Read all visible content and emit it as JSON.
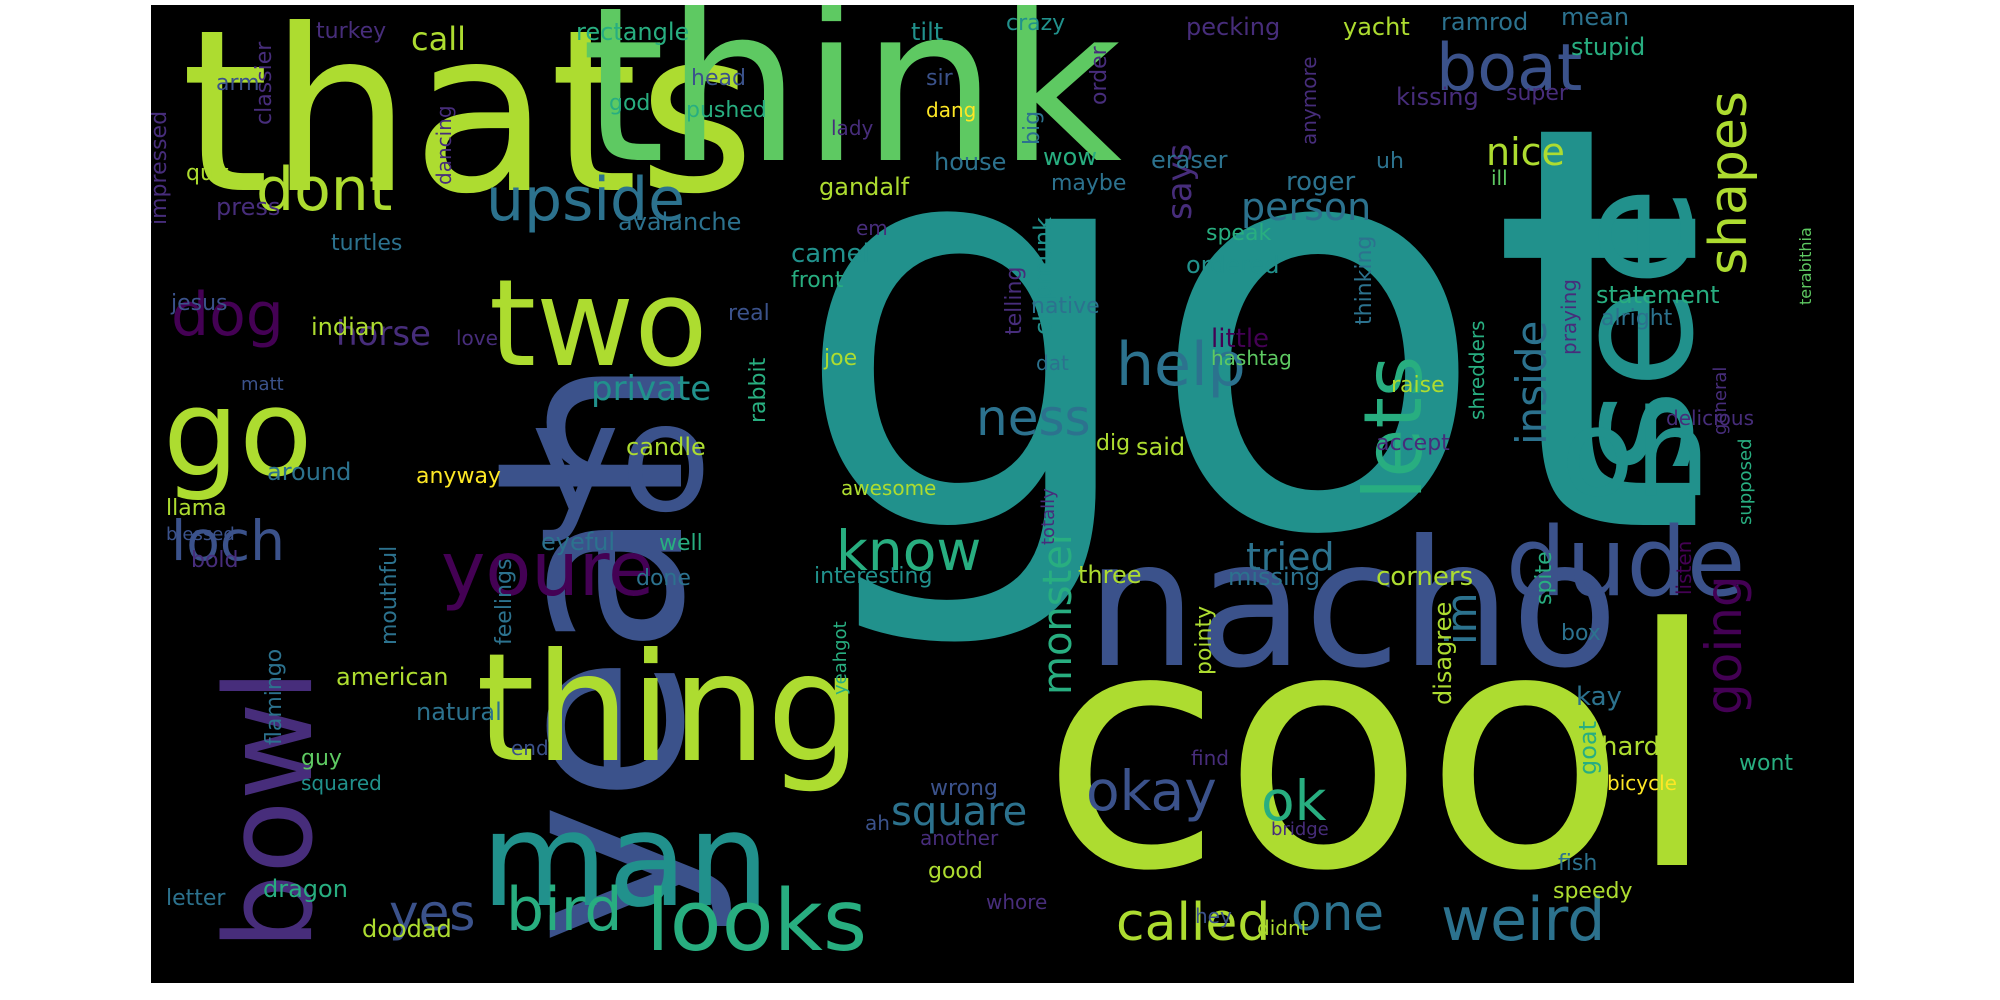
{
  "palette": {
    "purple": "#440154",
    "indigo": "#472d7b",
    "blue": "#3b528b",
    "steel": "#2c728e",
    "teal": "#21918c",
    "green": "#28ae80",
    "lime": "#5ec962",
    "yellowgreen": "#addc30",
    "yellow": "#fde725",
    "background": "#000000"
  },
  "words": [
    {
      "text": "got",
      "color": "teal"
    },
    {
      "text": "cool",
      "color": "yellowgreen"
    },
    {
      "text": "thats",
      "color": "yellowgreen"
    },
    {
      "text": "think",
      "color": "lime"
    },
    {
      "text": "yeah",
      "color": "blue"
    },
    {
      "text": "nacho",
      "color": "blue"
    },
    {
      "text": "see",
      "color": "teal"
    },
    {
      "text": "thing",
      "color": "yellowgreen"
    },
    {
      "text": "man",
      "color": "teal"
    },
    {
      "text": "yo",
      "color": "blue"
    },
    {
      "text": "two",
      "color": "yellowgreen"
    },
    {
      "text": "oh",
      "color": "teal"
    },
    {
      "text": "go",
      "color": "yellowgreen"
    },
    {
      "text": "bowl",
      "color": "indigo"
    },
    {
      "text": "looks",
      "color": "green"
    },
    {
      "text": "dude",
      "color": "blue"
    },
    {
      "text": "youre",
      "color": "purple"
    },
    {
      "text": "lets",
      "color": "green"
    },
    {
      "text": "boat",
      "color": "blue"
    },
    {
      "text": "upside",
      "color": "steel"
    },
    {
      "text": "dont",
      "color": "yellowgreen"
    },
    {
      "text": "weird",
      "color": "steel"
    },
    {
      "text": "bird",
      "color": "green"
    },
    {
      "text": "called",
      "color": "yellowgreen"
    },
    {
      "text": "help",
      "color": "steel"
    },
    {
      "text": "know",
      "color": "green"
    },
    {
      "text": "dog",
      "color": "purple"
    },
    {
      "text": "loch",
      "color": "blue"
    },
    {
      "text": "okay",
      "color": "blue"
    },
    {
      "text": "ok",
      "color": "green"
    },
    {
      "text": "one",
      "color": "steel"
    },
    {
      "text": "yes",
      "color": "blue"
    },
    {
      "text": "ness",
      "color": "steel"
    },
    {
      "text": "shapes",
      "color": "yellowgreen"
    },
    {
      "text": "inside",
      "color": "steel"
    },
    {
      "text": "going",
      "color": "purple"
    },
    {
      "text": "im",
      "color": "steel"
    },
    {
      "text": "nice",
      "color": "yellowgreen"
    },
    {
      "text": "monster",
      "color": "green"
    },
    {
      "text": "square",
      "color": "steel"
    },
    {
      "text": "tried",
      "color": "steel"
    },
    {
      "text": "person",
      "color": "steel"
    },
    {
      "text": "private",
      "color": "teal"
    },
    {
      "text": "horse",
      "color": "indigo"
    },
    {
      "text": "call",
      "color": "yellowgreen"
    },
    {
      "text": "says",
      "color": "indigo"
    },
    {
      "text": "gandalf",
      "color": "yellowgreen"
    },
    {
      "text": "rectangle",
      "color": "green"
    },
    {
      "text": "turkey",
      "color": "indigo"
    },
    {
      "text": "tilt",
      "color": "teal"
    },
    {
      "text": "crazy",
      "color": "teal"
    },
    {
      "text": "pecking",
      "color": "indigo"
    },
    {
      "text": "yacht",
      "color": "yellowgreen"
    },
    {
      "text": "ramrod",
      "color": "steel"
    },
    {
      "text": "mean",
      "color": "steel"
    },
    {
      "text": "stupid",
      "color": "green"
    },
    {
      "text": "super",
      "color": "indigo"
    },
    {
      "text": "kissing",
      "color": "indigo"
    },
    {
      "text": "arm",
      "color": "blue"
    },
    {
      "text": "head",
      "color": "blue"
    },
    {
      "text": "sir",
      "color": "blue"
    },
    {
      "text": "god",
      "color": "green"
    },
    {
      "text": "pushed",
      "color": "green"
    },
    {
      "text": "dang",
      "color": "yellow"
    },
    {
      "text": "big",
      "color": "steel"
    },
    {
      "text": "order",
      "color": "indigo"
    },
    {
      "text": "anymore",
      "color": "indigo"
    },
    {
      "text": "classier",
      "color": "indigo"
    },
    {
      "text": "impressed",
      "color": "indigo"
    },
    {
      "text": "dancing",
      "color": "indigo"
    },
    {
      "text": "lady",
      "color": "indigo"
    },
    {
      "text": "quit",
      "color": "yellowgreen"
    },
    {
      "text": "house",
      "color": "steel"
    },
    {
      "text": "wow",
      "color": "green"
    },
    {
      "text": "maybe",
      "color": "steel"
    },
    {
      "text": "eraser",
      "color": "steel"
    },
    {
      "text": "roger",
      "color": "steel"
    },
    {
      "text": "uh",
      "color": "steel"
    },
    {
      "text": "ill",
      "color": "lime"
    },
    {
      "text": "press",
      "color": "indigo"
    },
    {
      "text": "avalanche",
      "color": "steel"
    },
    {
      "text": "turtles",
      "color": "steel"
    },
    {
      "text": "camel",
      "color": "teal"
    },
    {
      "text": "em",
      "color": "indigo"
    },
    {
      "text": "front",
      "color": "green"
    },
    {
      "text": "chipmunk",
      "color": "teal"
    },
    {
      "text": "telling",
      "color": "indigo"
    },
    {
      "text": "speak",
      "color": "green"
    },
    {
      "text": "ordered",
      "color": "teal"
    },
    {
      "text": "thinking",
      "color": "steel"
    },
    {
      "text": "statement",
      "color": "green"
    },
    {
      "text": "alright",
      "color": "steel"
    },
    {
      "text": "praying",
      "color": "indigo"
    },
    {
      "text": "general",
      "color": "indigo"
    },
    {
      "text": "supposed",
      "color": "green"
    },
    {
      "text": "terabithia",
      "color": "lime"
    },
    {
      "text": "jesus",
      "color": "blue"
    },
    {
      "text": "real",
      "color": "blue"
    },
    {
      "text": "native",
      "color": "steel"
    },
    {
      "text": "indian",
      "color": "yellowgreen"
    },
    {
      "text": "love",
      "color": "indigo"
    },
    {
      "text": "little",
      "color": "purple"
    },
    {
      "text": "joe",
      "color": "yellowgreen"
    },
    {
      "text": "rabbit",
      "color": "green"
    },
    {
      "text": "dat",
      "color": "steel"
    },
    {
      "text": "hashtag",
      "color": "lime"
    },
    {
      "text": "raise",
      "color": "yellowgreen"
    },
    {
      "text": "shredders",
      "color": "green"
    },
    {
      "text": "matt",
      "color": "blue"
    },
    {
      "text": "delicious",
      "color": "indigo"
    },
    {
      "text": "candle",
      "color": "yellowgreen"
    },
    {
      "text": "accept",
      "color": "indigo"
    },
    {
      "text": "dig",
      "color": "yellowgreen"
    },
    {
      "text": "said",
      "color": "yellowgreen"
    },
    {
      "text": "around",
      "color": "steel"
    },
    {
      "text": "anyway",
      "color": "yellow"
    },
    {
      "text": "llama",
      "color": "yellowgreen"
    },
    {
      "text": "awesome",
      "color": "yellowgreen"
    },
    {
      "text": "totally",
      "color": "indigo"
    },
    {
      "text": "blessed",
      "color": "blue"
    },
    {
      "text": "eyeful",
      "color": "steel"
    },
    {
      "text": "well",
      "color": "green"
    },
    {
      "text": "bold",
      "color": "indigo"
    },
    {
      "text": "feelings",
      "color": "steel"
    },
    {
      "text": "mouthful",
      "color": "steel"
    },
    {
      "text": "done",
      "color": "steel"
    },
    {
      "text": "interesting",
      "color": "teal"
    },
    {
      "text": "three",
      "color": "yellowgreen"
    },
    {
      "text": "missing",
      "color": "steel"
    },
    {
      "text": "corners",
      "color": "yellowgreen"
    },
    {
      "text": "spite",
      "color": "green"
    },
    {
      "text": "listen",
      "color": "purple"
    },
    {
      "text": "box",
      "color": "steel"
    },
    {
      "text": "pointy",
      "color": "yellowgreen"
    },
    {
      "text": "yeahgot",
      "color": "green"
    },
    {
      "text": "disagree",
      "color": "yellowgreen"
    },
    {
      "text": "flamingo",
      "color": "steel"
    },
    {
      "text": "american",
      "color": "yellowgreen"
    },
    {
      "text": "natural",
      "color": "steel"
    },
    {
      "text": "end",
      "color": "blue"
    },
    {
      "text": "guy",
      "color": "lime"
    },
    {
      "text": "squared",
      "color": "teal"
    },
    {
      "text": "wrong",
      "color": "blue"
    },
    {
      "text": "find",
      "color": "indigo"
    },
    {
      "text": "goat",
      "color": "green"
    },
    {
      "text": "kay",
      "color": "steel"
    },
    {
      "text": "hard",
      "color": "yellowgreen"
    },
    {
      "text": "bicycle",
      "color": "yellow"
    },
    {
      "text": "wont",
      "color": "green"
    },
    {
      "text": "ah",
      "color": "blue"
    },
    {
      "text": "another",
      "color": "indigo"
    },
    {
      "text": "bridge",
      "color": "indigo"
    },
    {
      "text": "letter",
      "color": "steel"
    },
    {
      "text": "dragon",
      "color": "green"
    },
    {
      "text": "doodad",
      "color": "yellowgreen"
    },
    {
      "text": "good",
      "color": "yellowgreen"
    },
    {
      "text": "whore",
      "color": "indigo"
    },
    {
      "text": "hey",
      "color": "blue"
    },
    {
      "text": "didnt",
      "color": "yellowgreen"
    },
    {
      "text": "fish",
      "color": "steel"
    },
    {
      "text": "speedy",
      "color": "yellowgreen"
    }
  ]
}
